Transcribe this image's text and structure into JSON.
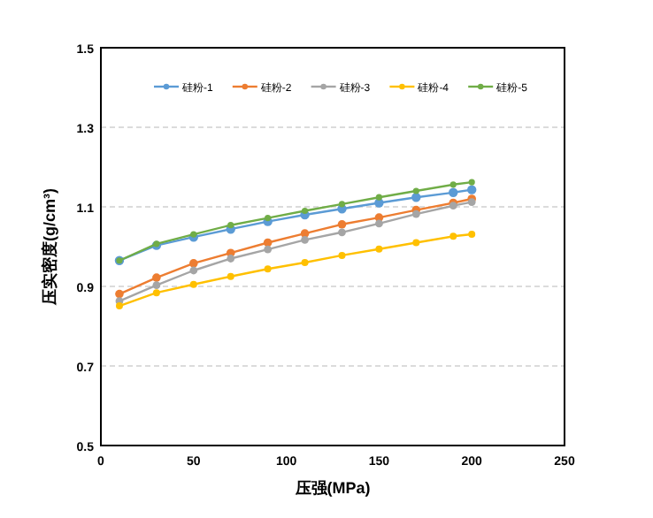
{
  "chart_data": {
    "type": "line",
    "xlabel": "压强(MPa)",
    "ylabel": "压实密度(g/cm³)",
    "x": [
      10,
      30,
      50,
      70,
      90,
      110,
      130,
      150,
      170,
      190,
      200
    ],
    "xlim": [
      0,
      250
    ],
    "xticks": [
      0,
      50,
      100,
      150,
      200,
      250
    ],
    "ylim": [
      0.5,
      1.5
    ],
    "yticks": [
      {
        "value": 0.5,
        "label": "0.5"
      },
      {
        "value": 0.7,
        "label": "0.7"
      },
      {
        "value": 0.9,
        "label": "0.9"
      },
      {
        "value": 1.1,
        "label": "1.1"
      },
      {
        "value": 1.3,
        "label": "1.3"
      },
      {
        "value": 1.5,
        "label": "1.5"
      }
    ],
    "grid": "y",
    "legend": "top",
    "marker": "circle",
    "line_style": "solid",
    "series": [
      {
        "name": "硅粉-1",
        "color": "#5b9bd5",
        "values": [
          0.965,
          1.003,
          1.024,
          1.044,
          1.063,
          1.08,
          1.095,
          1.11,
          1.124,
          1.136,
          1.143
        ]
      },
      {
        "name": "硅粉-2",
        "color": "#ed7d31",
        "values": [
          0.881,
          0.922,
          0.958,
          0.984,
          1.01,
          1.033,
          1.056,
          1.073,
          1.092,
          1.11,
          1.12
        ]
      },
      {
        "name": "硅粉-3",
        "color": "#a5a5a5",
        "values": [
          0.863,
          0.903,
          0.94,
          0.97,
          0.993,
          1.017,
          1.036,
          1.058,
          1.082,
          1.103,
          1.112
        ]
      },
      {
        "name": "硅粉-4",
        "color": "#ffc000",
        "values": [
          0.851,
          0.884,
          0.905,
          0.925,
          0.944,
          0.96,
          0.978,
          0.994,
          1.01,
          1.026,
          1.031
        ]
      },
      {
        "name": "硅粉-5",
        "color": "#70ad47",
        "values": [
          0.965,
          1.007,
          1.031,
          1.054,
          1.072,
          1.09,
          1.107,
          1.124,
          1.14,
          1.156,
          1.162
        ]
      }
    ]
  }
}
